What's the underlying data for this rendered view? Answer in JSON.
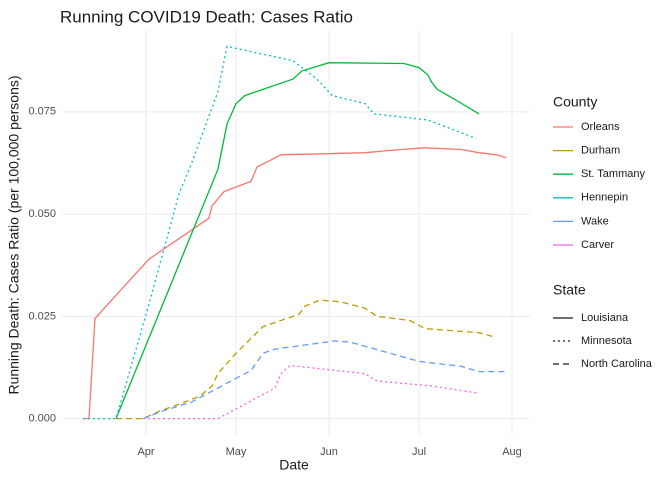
{
  "chart_data": {
    "type": "line",
    "title": "Running COVID19 Death: Cases Ratio",
    "x_label": "Date",
    "y_label": "Running Death: Cases Ratio (per 100,000 persons)",
    "xlim": [
      3,
      159
    ],
    "xticks": [
      {
        "value": 31,
        "label": "Apr"
      },
      {
        "value": 61,
        "label": "May"
      },
      {
        "value": 92,
        "label": "Jun"
      },
      {
        "value": 122,
        "label": "Jul"
      },
      {
        "value": 153,
        "label": "Aug"
      }
    ],
    "ylim": [
      -0.004,
      0.095
    ],
    "yticks": [
      {
        "value": 0,
        "label": "0.000"
      },
      0.025,
      {
        "value": 0.05,
        "label": "0.050"
      },
      0.075
    ],
    "grid": true,
    "legend_title": "County",
    "legend_position": "right",
    "linetype_legend": {
      "title": "State",
      "items": [
        {
          "name": "Louisiana",
          "dash": "solid"
        },
        {
          "name": "Minnesota",
          "dash": "dotted"
        },
        {
          "name": "North Carolina",
          "dash": "dashed"
        }
      ]
    },
    "series": [
      {
        "name": "Orleans",
        "color": "#F8766D",
        "dash": "solid",
        "x": [
          10,
          12,
          14,
          32,
          52,
          53,
          57,
          66,
          68,
          72,
          76,
          104,
          116,
          124,
          136,
          142,
          148,
          151
        ],
        "values": [
          0,
          0,
          0.0245,
          0.039,
          0.049,
          0.052,
          0.0555,
          0.058,
          0.0615,
          0.063,
          0.0645,
          0.065,
          0.0658,
          0.0662,
          0.0658,
          0.065,
          0.0645,
          0.0638
        ]
      },
      {
        "name": "Durham",
        "color": "#B79F00",
        "dash": "dashed",
        "x": [
          21,
          30,
          36,
          42,
          49,
          53,
          55,
          61,
          70,
          82,
          84,
          89,
          96,
          104,
          108,
          119,
          124,
          142,
          147
        ],
        "values": [
          0,
          0,
          0.002,
          0.0035,
          0.0055,
          0.008,
          0.011,
          0.016,
          0.0225,
          0.0255,
          0.0275,
          0.029,
          0.0285,
          0.027,
          0.025,
          0.024,
          0.022,
          0.021,
          0.02
        ]
      },
      {
        "name": "St. Tammany",
        "color": "#00BA38",
        "dash": "solid",
        "x": [
          21,
          55,
          58,
          61,
          64,
          80,
          83,
          92,
          117,
          122,
          125,
          126,
          128,
          134,
          142
        ],
        "values": [
          0,
          0.061,
          0.072,
          0.077,
          0.079,
          0.083,
          0.085,
          0.087,
          0.0868,
          0.0858,
          0.084,
          0.0825,
          0.0805,
          0.078,
          0.0745
        ]
      },
      {
        "name": "Hennepin",
        "color": "#00BFC4",
        "dash": "dotted",
        "x": [
          10,
          21,
          32,
          42,
          46,
          55,
          58,
          80,
          88,
          93,
          104,
          107,
          125,
          141
        ],
        "values": [
          0,
          0,
          0.028,
          0.055,
          0.062,
          0.08,
          0.091,
          0.0875,
          0.083,
          0.079,
          0.077,
          0.0745,
          0.073,
          0.0685
        ]
      },
      {
        "name": "Wake",
        "color": "#619CFF",
        "dash": "dashed",
        "x": [
          30,
          37,
          46,
          66,
          70,
          74,
          94,
          99,
          122,
          136,
          142,
          151
        ],
        "values": [
          0,
          0.002,
          0.004,
          0.0118,
          0.016,
          0.017,
          0.019,
          0.0187,
          0.014,
          0.0128,
          0.0115,
          0.0115
        ]
      },
      {
        "name": "Carver",
        "color": "#F564E3",
        "dash": "dotted",
        "x": [
          30,
          55,
          74,
          76,
          79,
          104,
          108,
          126,
          142
        ],
        "values": [
          0,
          0,
          0.0075,
          0.011,
          0.013,
          0.011,
          0.0092,
          0.008,
          0.0062
        ]
      }
    ]
  }
}
